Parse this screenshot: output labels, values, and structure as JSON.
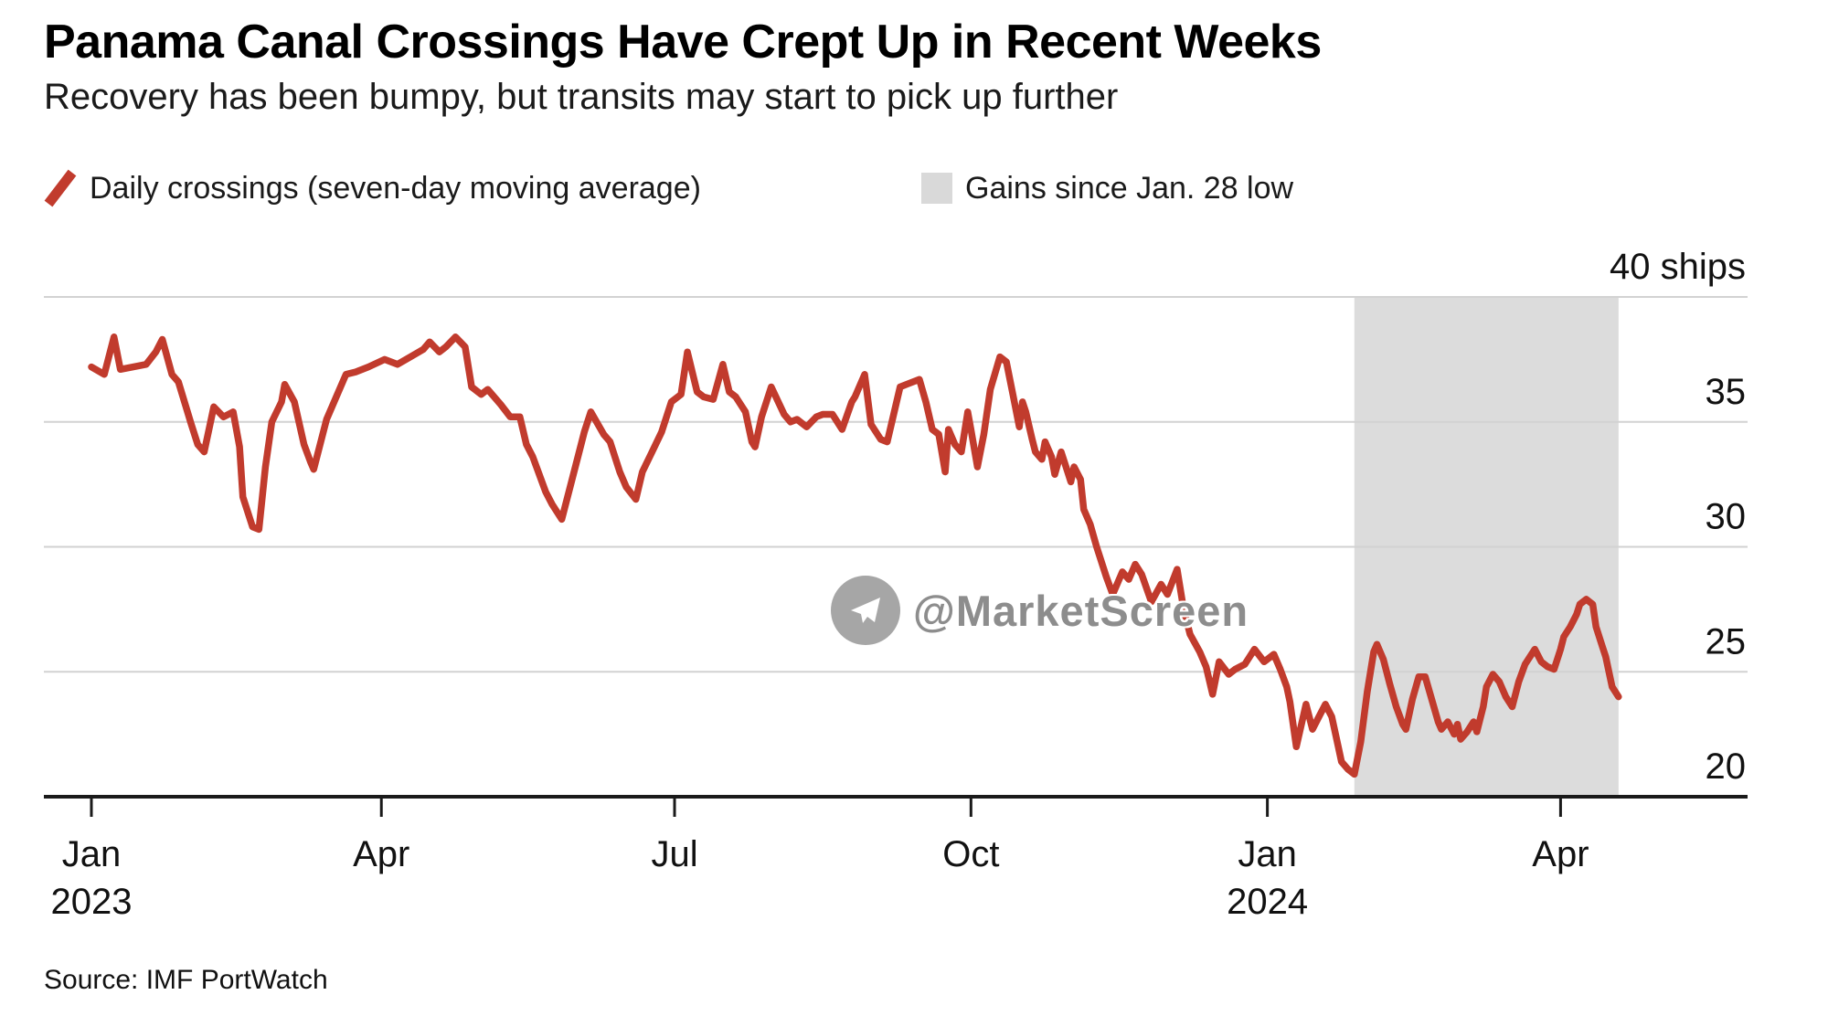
{
  "header": {
    "title": "Panama Canal Crossings Have Crept Up in Recent Weeks",
    "subtitle": "Recovery has been bumpy, but transits may start to pick up further"
  },
  "legend": {
    "items": [
      {
        "label": "Daily crossings (seven-day moving average)",
        "swatch": "red-slash",
        "color": "#c13b2d"
      },
      {
        "label": "Gains since Jan. 28 low",
        "swatch": "gray-box",
        "color": "#dcdcdc"
      }
    ]
  },
  "watermark": {
    "handle": "@MarketScreen",
    "icon": "telegram-plane-icon"
  },
  "footer": {
    "source": "Source: IMF PortWatch"
  },
  "chart_data": {
    "type": "line",
    "title": "Panama Canal Crossings Have Crept Up in Recent Weeks",
    "series_name": "Daily crossings (seven-day moving average)",
    "line_color": "#c13b2d",
    "unit_label": "40 ships",
    "ylim": [
      20,
      40
    ],
    "grid": true,
    "y_ticks": [
      {
        "value": 40,
        "label": "40 ships"
      },
      {
        "value": 35,
        "label": "35"
      },
      {
        "value": 30,
        "label": "30"
      },
      {
        "value": 25,
        "label": "25"
      },
      {
        "value": 20,
        "label": "20"
      }
    ],
    "x_unit": "days since 2023-01-01",
    "x_ticks": [
      {
        "day": 0,
        "month": "Jan",
        "year": "2023"
      },
      {
        "day": 90,
        "month": "Apr"
      },
      {
        "day": 181,
        "month": "Jul"
      },
      {
        "day": 273,
        "month": "Oct"
      },
      {
        "day": 365,
        "month": "Jan",
        "year": "2024"
      },
      {
        "day": 456,
        "month": "Apr"
      }
    ],
    "shaded_region": {
      "label": "Gains since Jan. 28 low",
      "start_day": 392,
      "end_day": 474,
      "color": "#dcdcdc"
    },
    "points": [
      [
        0,
        37.2
      ],
      [
        4,
        36.9
      ],
      [
        7,
        38.4
      ],
      [
        9,
        37.1
      ],
      [
        13,
        37.2
      ],
      [
        17,
        37.3
      ],
      [
        20,
        37.8
      ],
      [
        22,
        38.3
      ],
      [
        25,
        36.9
      ],
      [
        27,
        36.6
      ],
      [
        31,
        34.9
      ],
      [
        33,
        34.1
      ],
      [
        35,
        33.8
      ],
      [
        38,
        35.6
      ],
      [
        41,
        35.2
      ],
      [
        44,
        35.4
      ],
      [
        46,
        34.0
      ],
      [
        47,
        32.0
      ],
      [
        50,
        30.8
      ],
      [
        52,
        30.7
      ],
      [
        54,
        33.2
      ],
      [
        56,
        35.0
      ],
      [
        59,
        35.8
      ],
      [
        60,
        36.5
      ],
      [
        63,
        35.8
      ],
      [
        66,
        34.1
      ],
      [
        68,
        33.4
      ],
      [
        69,
        33.1
      ],
      [
        73,
        35.1
      ],
      [
        76,
        36.0
      ],
      [
        79,
        36.9
      ],
      [
        82,
        37.0
      ],
      [
        86,
        37.2
      ],
      [
        91,
        37.5
      ],
      [
        95,
        37.3
      ],
      [
        99,
        37.6
      ],
      [
        103,
        37.9
      ],
      [
        105,
        38.2
      ],
      [
        108,
        37.8
      ],
      [
        110,
        38.0
      ],
      [
        113,
        38.4
      ],
      [
        116,
        38.0
      ],
      [
        118,
        36.4
      ],
      [
        121,
        36.1
      ],
      [
        123,
        36.3
      ],
      [
        127,
        35.7
      ],
      [
        130,
        35.2
      ],
      [
        133,
        35.2
      ],
      [
        135,
        34.1
      ],
      [
        137,
        33.6
      ],
      [
        141,
        32.2
      ],
      [
        143,
        31.7
      ],
      [
        146,
        31.1
      ],
      [
        149,
        32.6
      ],
      [
        151,
        33.6
      ],
      [
        153,
        34.6
      ],
      [
        155,
        35.4
      ],
      [
        159,
        34.5
      ],
      [
        161,
        34.2
      ],
      [
        164,
        33.0
      ],
      [
        166,
        32.4
      ],
      [
        169,
        31.9
      ],
      [
        171,
        33.0
      ],
      [
        174,
        33.8
      ],
      [
        177,
        34.6
      ],
      [
        180,
        35.8
      ],
      [
        183,
        36.1
      ],
      [
        185,
        37.8
      ],
      [
        188,
        36.2
      ],
      [
        190,
        36.0
      ],
      [
        193,
        35.9
      ],
      [
        196,
        37.3
      ],
      [
        198,
        36.2
      ],
      [
        200,
        36.0
      ],
      [
        203,
        35.4
      ],
      [
        205,
        34.2
      ],
      [
        206,
        34.0
      ],
      [
        208,
        35.2
      ],
      [
        211,
        36.4
      ],
      [
        215,
        35.3
      ],
      [
        217,
        35.0
      ],
      [
        219,
        35.1
      ],
      [
        222,
        34.8
      ],
      [
        225,
        35.2
      ],
      [
        227,
        35.3
      ],
      [
        230,
        35.3
      ],
      [
        233,
        34.7
      ],
      [
        236,
        35.8
      ],
      [
        237,
        36.0
      ],
      [
        240,
        36.9
      ],
      [
        242,
        34.9
      ],
      [
        245,
        34.3
      ],
      [
        247,
        34.2
      ],
      [
        251,
        36.4
      ],
      [
        253,
        36.5
      ],
      [
        257,
        36.7
      ],
      [
        259,
        35.8
      ],
      [
        261,
        34.7
      ],
      [
        263,
        34.5
      ],
      [
        265,
        33.0
      ],
      [
        266,
        34.7
      ],
      [
        268,
        34.1
      ],
      [
        270,
        33.8
      ],
      [
        272,
        35.4
      ],
      [
        273,
        34.7
      ],
      [
        275,
        33.2
      ],
      [
        277,
        34.5
      ],
      [
        279,
        36.3
      ],
      [
        282,
        37.6
      ],
      [
        284,
        37.4
      ],
      [
        286,
        36.1
      ],
      [
        288,
        34.8
      ],
      [
        289,
        35.8
      ],
      [
        290,
        35.4
      ],
      [
        292,
        34.3
      ],
      [
        293,
        33.8
      ],
      [
        295,
        33.5
      ],
      [
        296,
        34.2
      ],
      [
        298,
        33.6
      ],
      [
        299,
        32.9
      ],
      [
        301,
        33.8
      ],
      [
        303,
        33.0
      ],
      [
        304,
        32.6
      ],
      [
        305,
        33.2
      ],
      [
        307,
        32.7
      ],
      [
        308,
        31.5
      ],
      [
        310,
        30.9
      ],
      [
        312,
        30.0
      ],
      [
        315,
        28.8
      ],
      [
        317,
        28.1
      ],
      [
        320,
        29.0
      ],
      [
        322,
        28.7
      ],
      [
        324,
        29.3
      ],
      [
        326,
        28.9
      ],
      [
        329,
        27.8
      ],
      [
        332,
        28.5
      ],
      [
        334,
        28.1
      ],
      [
        337,
        29.1
      ],
      [
        339,
        27.5
      ],
      [
        341,
        26.5
      ],
      [
        344,
        25.8
      ],
      [
        346,
        25.2
      ],
      [
        348,
        24.1
      ],
      [
        350,
        25.4
      ],
      [
        353,
        24.9
      ],
      [
        355,
        25.1
      ],
      [
        358,
        25.3
      ],
      [
        361,
        25.9
      ],
      [
        364,
        25.4
      ],
      [
        367,
        25.7
      ],
      [
        369,
        25.1
      ],
      [
        371,
        24.4
      ],
      [
        372,
        23.8
      ],
      [
        374,
        22.0
      ],
      [
        377,
        23.7
      ],
      [
        379,
        22.7
      ],
      [
        381,
        23.2
      ],
      [
        383,
        23.7
      ],
      [
        385,
        23.2
      ],
      [
        387,
        22.0
      ],
      [
        388,
        21.4
      ],
      [
        390,
        21.1
      ],
      [
        392,
        20.9
      ],
      [
        394,
        22.2
      ],
      [
        396,
        24.2
      ],
      [
        398,
        25.8
      ],
      [
        399,
        26.1
      ],
      [
        401,
        25.5
      ],
      [
        403,
        24.5
      ],
      [
        405,
        23.6
      ],
      [
        407,
        22.9
      ],
      [
        408,
        22.7
      ],
      [
        410,
        23.9
      ],
      [
        412,
        24.8
      ],
      [
        414,
        24.8
      ],
      [
        416,
        23.9
      ],
      [
        418,
        23.0
      ],
      [
        419,
        22.7
      ],
      [
        421,
        23.0
      ],
      [
        423,
        22.5
      ],
      [
        424,
        22.9
      ],
      [
        425,
        22.3
      ],
      [
        427,
        22.6
      ],
      [
        429,
        23.0
      ],
      [
        430,
        22.6
      ],
      [
        432,
        23.6
      ],
      [
        433,
        24.4
      ],
      [
        435,
        24.9
      ],
      [
        437,
        24.6
      ],
      [
        439,
        24.0
      ],
      [
        441,
        23.6
      ],
      [
        443,
        24.6
      ],
      [
        445,
        25.3
      ],
      [
        447,
        25.7
      ],
      [
        448,
        25.9
      ],
      [
        450,
        25.4
      ],
      [
        452,
        25.2
      ],
      [
        454,
        25.1
      ],
      [
        456,
        25.9
      ],
      [
        457,
        26.4
      ],
      [
        459,
        26.8
      ],
      [
        461,
        27.3
      ],
      [
        462,
        27.7
      ],
      [
        464,
        27.9
      ],
      [
        466,
        27.7
      ],
      [
        467,
        26.8
      ],
      [
        469,
        26.0
      ],
      [
        470,
        25.6
      ],
      [
        471,
        25.0
      ],
      [
        472,
        24.4
      ],
      [
        474,
        24.0
      ]
    ]
  }
}
